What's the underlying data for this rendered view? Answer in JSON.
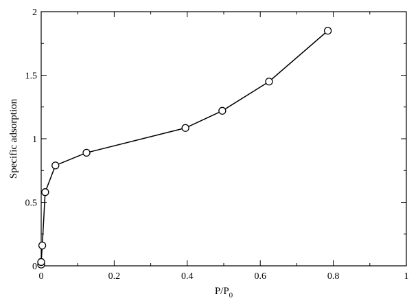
{
  "chart_data": {
    "type": "line",
    "title": "",
    "xlabel": "P/P",
    "xlabel_subscript": "0",
    "ylabel": "Specific adsorption",
    "xlim": [
      0,
      1
    ],
    "ylim": [
      0,
      2
    ],
    "x_ticks": [
      0,
      0.2,
      0.4,
      0.6,
      0.8,
      1
    ],
    "x_tick_labels": [
      "0",
      "0.2",
      "0.4",
      "0.6",
      "0.8",
      "1"
    ],
    "y_ticks": [
      0,
      0.5,
      1,
      1.5,
      2
    ],
    "y_tick_labels": [
      "0",
      "0.5",
      "1",
      "1.5",
      "2"
    ],
    "grid": false,
    "series": [
      {
        "marker": "open-circle",
        "color": "#000000",
        "x": [
          0.0,
          0.0,
          0.003,
          0.011,
          0.039,
          0.124,
          0.395,
          0.496,
          0.624,
          0.785
        ],
        "y": [
          0.01,
          0.03,
          0.16,
          0.58,
          0.79,
          0.89,
          1.085,
          1.22,
          1.45,
          1.85
        ]
      }
    ]
  }
}
